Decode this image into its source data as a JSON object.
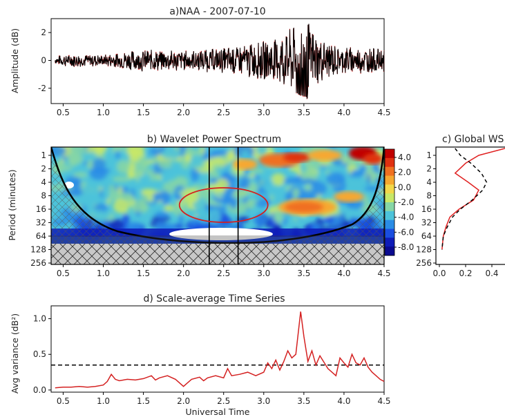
{
  "chart_data": [
    {
      "id": "panel_a",
      "type": "line",
      "title": "a)NAA - 2007-07-10",
      "xlabel": "",
      "ylabel": "Amplitude (dB)",
      "xlim": [
        0.35,
        4.5
      ],
      "ylim": [
        -3.1,
        3.0
      ],
      "xticks": [
        "0.5",
        "1.0",
        "1.5",
        "2.0",
        "2.5",
        "3.0",
        "3.5",
        "4.0",
        "4.5"
      ],
      "yticks": [
        "-2",
        "0",
        "2"
      ],
      "series": [
        {
          "style": "black noisy signal with red overlay",
          "envelope": [
            [
              0.4,
              0.3
            ],
            [
              0.6,
              0.5
            ],
            [
              1.0,
              0.4
            ],
            [
              1.5,
              0.8
            ],
            [
              2.0,
              0.7
            ],
            [
              2.5,
              0.9
            ],
            [
              3.0,
              1.4
            ],
            [
              3.25,
              1.9
            ],
            [
              3.45,
              2.6
            ],
            [
              3.55,
              2.8
            ],
            [
              3.7,
              1.5
            ],
            [
              4.0,
              1.0
            ],
            [
              4.5,
              0.8
            ]
          ]
        }
      ]
    },
    {
      "id": "panel_b",
      "type": "heatmap",
      "title": "b) Wavelet Power Spectrum",
      "xlabel": "",
      "ylabel": "Period (minutes)",
      "xlim": [
        0.35,
        4.5
      ],
      "yticks": [
        "1",
        "2",
        "4",
        "8",
        "16",
        "32",
        "64",
        "128",
        "256"
      ],
      "xticks": [
        "0.5",
        "1.0",
        "1.5",
        "2.0",
        "2.5",
        "3.0",
        "3.5",
        "4.0",
        "4.5"
      ],
      "vertical_lines_x": [
        2.32,
        2.68
      ],
      "highlight_ellipse": {
        "x_center": 2.5,
        "period_center": 10
      },
      "colorbar": {
        "ticks": [
          "4.0",
          "2.0",
          "0.0",
          "-2.0",
          "-4.0",
          "-6.0",
          "-8.0"
        ],
        "colors": [
          "#c00000",
          "#e03010",
          "#f07020",
          "#f6a830",
          "#f2d84a",
          "#c8e868",
          "#86d6a6",
          "#4cc3da",
          "#2a8ce6",
          "#1a4ee0",
          "#0e1cb8",
          "#0a0a90"
        ]
      }
    },
    {
      "id": "panel_c",
      "type": "line",
      "title": "c) Global WS",
      "xticks": [
        "0.0",
        "0.2",
        "0.4"
      ],
      "yticks": [
        "1",
        "2",
        "4",
        "8",
        "16",
        "32",
        "64",
        "128",
        "256"
      ],
      "series": [
        {
          "style": "red solid",
          "x": [
            0.5,
            0.3,
            0.2,
            0.12,
            0.22,
            0.3,
            0.26,
            0.15,
            0.08,
            0.05,
            0.03,
            0.02
          ],
          "period": [
            0.7,
            1,
            1.5,
            2.5,
            4,
            6,
            10,
            16,
            24,
            40,
            64,
            128
          ]
        },
        {
          "style": "black dashed",
          "x": [
            0.12,
            0.16,
            0.24,
            0.32,
            0.36,
            0.33,
            0.25,
            0.16,
            0.1,
            0.06,
            0.03,
            0.02
          ],
          "period": [
            0.7,
            1,
            1.5,
            2.5,
            4,
            6,
            10,
            16,
            24,
            40,
            64,
            128
          ]
        }
      ]
    },
    {
      "id": "panel_d",
      "type": "line",
      "title": "d) Scale-average Time Series",
      "xlabel": "Universal Time",
      "ylabel": "Avg variance (dB²)",
      "xlim": [
        0.35,
        4.5
      ],
      "ylim": [
        -0.03,
        1.18
      ],
      "xticks": [
        "0.5",
        "1.0",
        "1.5",
        "2.0",
        "2.5",
        "3.0",
        "3.5",
        "4.0",
        "4.5"
      ],
      "yticks": [
        "0.0",
        "0.5",
        "1.0"
      ],
      "threshold": 0.35,
      "series": [
        {
          "style": "red solid",
          "x": [
            0.4,
            0.5,
            0.6,
            0.7,
            0.8,
            0.9,
            1.0,
            1.05,
            1.1,
            1.15,
            1.2,
            1.3,
            1.4,
            1.5,
            1.6,
            1.65,
            1.7,
            1.8,
            1.9,
            2.0,
            2.05,
            2.1,
            2.2,
            2.25,
            2.3,
            2.4,
            2.5,
            2.55,
            2.6,
            2.7,
            2.8,
            2.9,
            3.0,
            3.05,
            3.1,
            3.15,
            3.2,
            3.25,
            3.3,
            3.35,
            3.4,
            3.43,
            3.46,
            3.5,
            3.55,
            3.6,
            3.65,
            3.7,
            3.8,
            3.85,
            3.9,
            3.95,
            4.0,
            4.05,
            4.1,
            4.15,
            4.2,
            4.25,
            4.3,
            4.35,
            4.4,
            4.45,
            4.5
          ],
          "y": [
            0.03,
            0.04,
            0.04,
            0.05,
            0.04,
            0.05,
            0.07,
            0.12,
            0.22,
            0.15,
            0.13,
            0.15,
            0.14,
            0.16,
            0.2,
            0.14,
            0.17,
            0.2,
            0.15,
            0.05,
            0.1,
            0.15,
            0.18,
            0.13,
            0.17,
            0.2,
            0.17,
            0.3,
            0.2,
            0.22,
            0.25,
            0.2,
            0.25,
            0.38,
            0.3,
            0.42,
            0.28,
            0.4,
            0.55,
            0.45,
            0.5,
            0.8,
            1.1,
            0.75,
            0.4,
            0.55,
            0.35,
            0.48,
            0.3,
            0.25,
            0.2,
            0.45,
            0.38,
            0.32,
            0.5,
            0.38,
            0.35,
            0.45,
            0.32,
            0.25,
            0.2,
            0.15,
            0.12
          ]
        }
      ]
    }
  ]
}
